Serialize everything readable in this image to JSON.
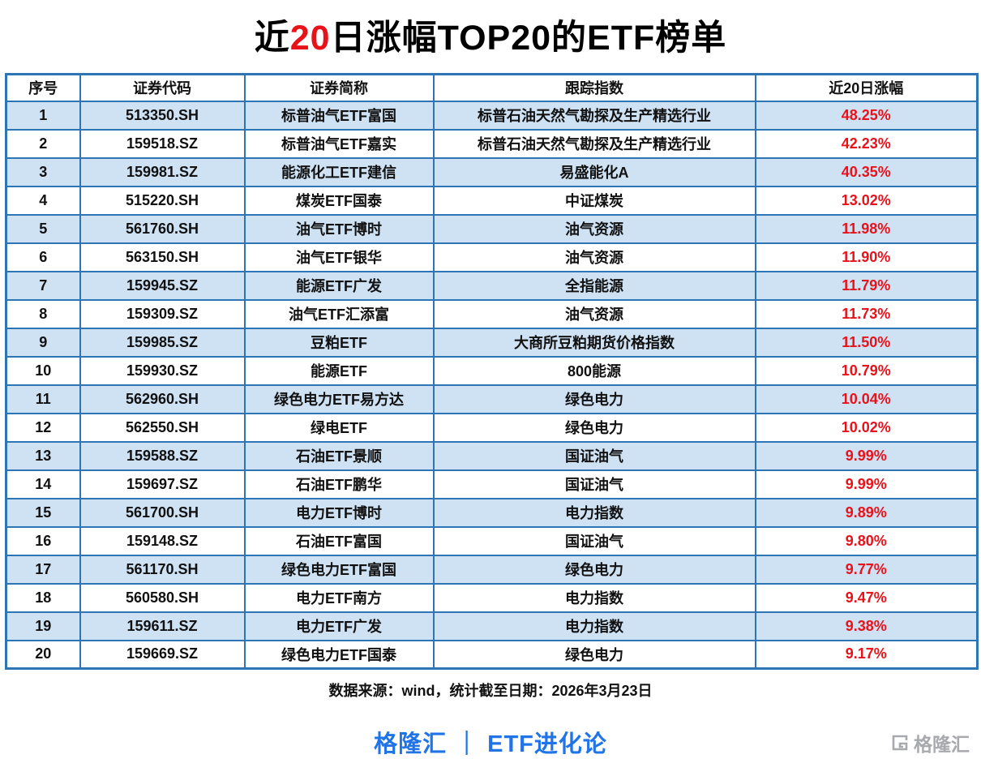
{
  "title": {
    "prefix": "近",
    "highlight": "20",
    "suffix": "日涨幅TOP20的ETF榜单"
  },
  "chart_data": {
    "type": "table",
    "title": "近20日涨幅TOP20的ETF榜单",
    "columns": [
      "序号",
      "证券代码",
      "证券简称",
      "跟踪指数",
      "近20日涨幅"
    ],
    "rows": [
      [
        "1",
        "513350.SH",
        "标普油气ETF富国",
        "标普石油天然气勘探及生产精选行业",
        "48.25%"
      ],
      [
        "2",
        "159518.SZ",
        "标普油气ETF嘉实",
        "标普石油天然气勘探及生产精选行业",
        "42.23%"
      ],
      [
        "3",
        "159981.SZ",
        "能源化工ETF建信",
        "易盛能化A",
        "40.35%"
      ],
      [
        "4",
        "515220.SH",
        "煤炭ETF国泰",
        "中证煤炭",
        "13.02%"
      ],
      [
        "5",
        "561760.SH",
        "油气ETF博时",
        "油气资源",
        "11.98%"
      ],
      [
        "6",
        "563150.SH",
        "油气ETF银华",
        "油气资源",
        "11.90%"
      ],
      [
        "7",
        "159945.SZ",
        "能源ETF广发",
        "全指能源",
        "11.79%"
      ],
      [
        "8",
        "159309.SZ",
        "油气ETF汇添富",
        "油气资源",
        "11.73%"
      ],
      [
        "9",
        "159985.SZ",
        "豆粕ETF",
        "大商所豆粕期货价格指数",
        "11.50%"
      ],
      [
        "10",
        "159930.SZ",
        "能源ETF",
        "800能源",
        "10.79%"
      ],
      [
        "11",
        "562960.SH",
        "绿色电力ETF易方达",
        "绿色电力",
        "10.04%"
      ],
      [
        "12",
        "562550.SH",
        "绿电ETF",
        "绿色电力",
        "10.02%"
      ],
      [
        "13",
        "159588.SZ",
        "石油ETF景顺",
        "国证油气",
        "9.99%"
      ],
      [
        "14",
        "159697.SZ",
        "石油ETF鹏华",
        "国证油气",
        "9.99%"
      ],
      [
        "15",
        "561700.SH",
        "电力ETF博时",
        "电力指数",
        "9.89%"
      ],
      [
        "16",
        "159148.SZ",
        "石油ETF富国",
        "国证油气",
        "9.80%"
      ],
      [
        "17",
        "561170.SH",
        "绿色电力ETF富国",
        "绿色电力",
        "9.77%"
      ],
      [
        "18",
        "560580.SH",
        "电力ETF南方",
        "电力指数",
        "9.47%"
      ],
      [
        "19",
        "159611.SZ",
        "电力ETF广发",
        "电力指数",
        "9.38%"
      ],
      [
        "20",
        "159669.SZ",
        "绿色电力ETF国泰",
        "绿色电力",
        "9.17%"
      ]
    ]
  },
  "footer": {
    "source": "数据来源：wind，统计截至日期：2026年3月23日",
    "brand_left": "格隆汇",
    "brand_separator": "｜",
    "brand_right": "ETF进化论",
    "watermark": "格隆汇"
  },
  "colors": {
    "accent_red": "#e8121a",
    "border_blue": "#2e75b6",
    "row_alt_blue": "#cfe2f4",
    "brand_blue": "#2174e8",
    "logo_gray": "#a7a9ac"
  }
}
